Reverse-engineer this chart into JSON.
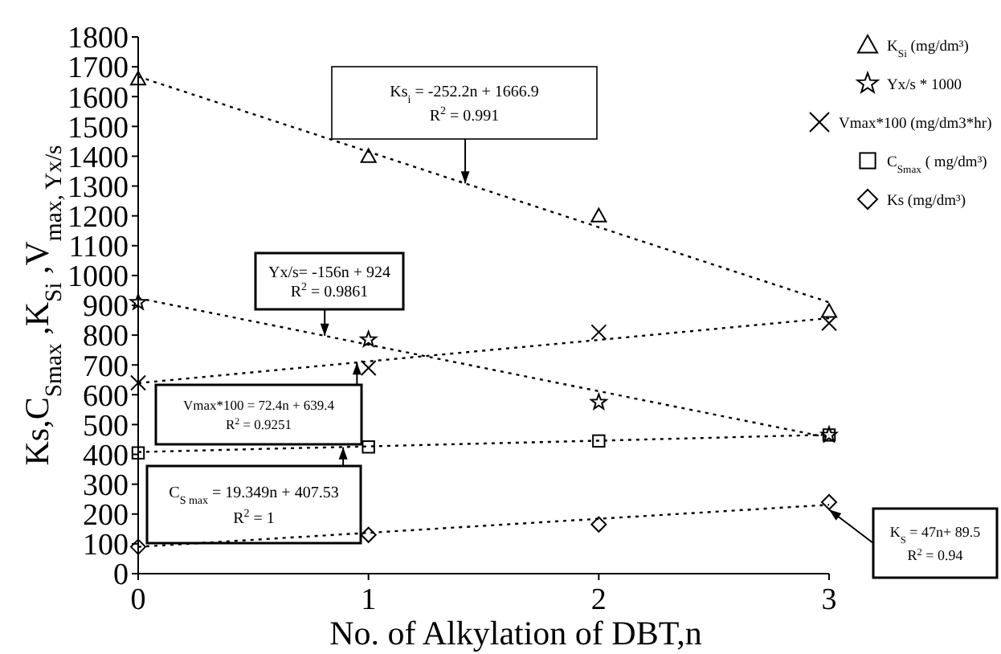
{
  "chart_data": {
    "type": "scatter",
    "xlabel": "No. of Alkylation of DBT,n",
    "ylabel": "Ks,C$_{Smax}$,K$_{Si}$,V$_{max, Yx/s}$",
    "x": [
      0,
      1,
      2,
      3
    ],
    "xlim": [
      0,
      3
    ],
    "xticks": [
      0,
      1,
      2,
      3
    ],
    "ylim": [
      0,
      1800
    ],
    "yticks": [
      0,
      100,
      200,
      300,
      400,
      500,
      600,
      700,
      800,
      900,
      1000,
      1100,
      1200,
      1300,
      1400,
      1500,
      1600,
      1700,
      1800
    ],
    "grid": false,
    "legend": "right",
    "series": [
      {
        "name": "K$_{Si}$ (mg/dm³)",
        "color": "#000000",
        "marker": "triangle",
        "values": [
          1660,
          1400,
          1200,
          880
        ]
      },
      {
        "name": "Yx/s * 1000",
        "color": "#000000",
        "marker": "star",
        "values": [
          910,
          785,
          575,
          465
        ]
      },
      {
        "name": "Vmax*100 (mg/dm3*hr)",
        "color": "#000000",
        "marker": "cross",
        "values": [
          640,
          690,
          810,
          840
        ]
      },
      {
        "name": "C$_{Smax}$ ( mg/dm³)",
        "color": "#000000",
        "marker": "square",
        "values": [
          405,
          425,
          445,
          465
        ]
      },
      {
        "name": "Ks (mg/dm³)",
        "color": "#000000",
        "marker": "diamond",
        "values": [
          90,
          130,
          165,
          240
        ]
      },
      {
        "type": "line",
        "color": "#000000",
        "line_style": "dotted",
        "values": [
          1667,
          1415,
          1162,
          910
        ]
      },
      {
        "type": "line",
        "color": "#000000",
        "line_style": "dotted",
        "values": [
          924,
          768,
          612,
          456
        ]
      },
      {
        "type": "line",
        "color": "#000000",
        "line_style": "dotted",
        "values": [
          639,
          712,
          784,
          857
        ]
      },
      {
        "type": "line",
        "color": "#000000",
        "line_style": "dotted",
        "values": [
          408,
          427,
          446,
          466
        ]
      },
      {
        "type": "line",
        "color": "#000000",
        "line_style": "dotted",
        "values": [
          90,
          137,
          184,
          231
        ]
      }
    ],
    "annotations": [
      {
        "text": "Ks$_{i}$ = -252.2n + 1666.9\nR$^{2}$ = 0.991",
        "x": 1.42,
        "y": 1309
      },
      {
        "text": "Yx/s= -156n + 924\nR$^{2}$ = 0.9861",
        "x": 0.81,
        "y": 798
      },
      {
        "text": "Vmax*100 = 72.4n + 639.4\nR$^{2}$ = 0.9251",
        "x": 0.95,
        "y": 708
      },
      {
        "text": "C$_{S max}$= 19.349n + 407.53\nR$^{2}$ = 1",
        "x": 0.89,
        "y": 424
      },
      {
        "text": "K$_{S}$ = 47n+ 89.5\nR$^{2}$ = 0.94",
        "x": 3,
        "y": 215
      }
    ]
  }
}
